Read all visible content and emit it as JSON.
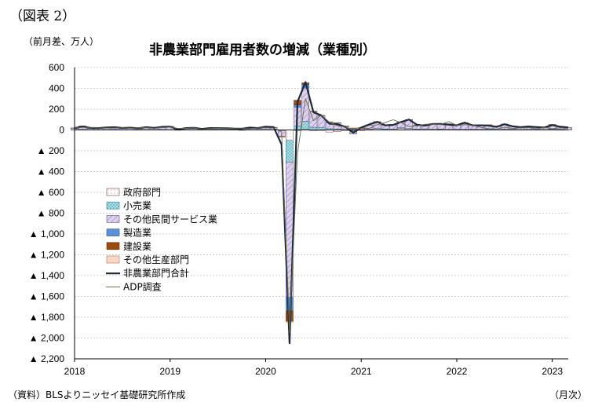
{
  "figure_label": "（図表 2）",
  "unit_label": "（前月差、万人）",
  "title": "非農業部門雇用者数の増減（業種別）",
  "source_note": "（資料）BLSよりニッセイ基礎研究所作成",
  "month_label": "（月次）",
  "colors": {
    "government": "#f3dede",
    "retail": "#a9dfe6",
    "other_services": "#d6c8ea",
    "manufacturing": "#5b8fd6",
    "construction": "#9c4a14",
    "other_goods": "#f9d9c6",
    "nfp_total": "#1b2a3a",
    "adp": "#6b6b4a",
    "grid": "#9a9a9a"
  },
  "chart_data": {
    "type": "bar",
    "title": "非農業部門雇用者数の増減（業種別）",
    "ylabel": "（前月差、万人）",
    "xlabel": "（月次）",
    "ylim": [
      -2200,
      600
    ],
    "y_ticks": [
      600,
      400,
      200,
      0,
      -200,
      -400,
      -600,
      -800,
      -1000,
      -1200,
      -1400,
      -1600,
      -1800,
      -2000,
      -2200
    ],
    "y_tick_labels": [
      "600",
      "400",
      "200",
      "0",
      "▲ 200",
      "▲ 400",
      "▲ 600",
      "▲ 800",
      "▲ 1,000",
      "▲ 1,200",
      "▲ 1,400",
      "▲ 1,600",
      "▲ 1,800",
      "▲ 2,000",
      "▲ 2,200"
    ],
    "x_tick_labels": [
      "2018",
      "2019",
      "2020",
      "2021",
      "2022",
      "2023"
    ],
    "x_start": "2018-01",
    "x_end": "2023-03",
    "legend_position": "left-middle",
    "legend": [
      "政府部門",
      "小売業",
      "その他民間サービス業",
      "製造業",
      "建設業",
      "その他生産部門",
      "非農業部門合計",
      "ADP調査"
    ],
    "months": [
      "2018-01",
      "2018-02",
      "2018-03",
      "2018-04",
      "2018-05",
      "2018-06",
      "2018-07",
      "2018-08",
      "2018-09",
      "2018-10",
      "2018-11",
      "2018-12",
      "2019-01",
      "2019-02",
      "2019-03",
      "2019-04",
      "2019-05",
      "2019-06",
      "2019-07",
      "2019-08",
      "2019-09",
      "2019-10",
      "2019-11",
      "2019-12",
      "2020-01",
      "2020-02",
      "2020-03",
      "2020-04",
      "2020-05",
      "2020-06",
      "2020-07",
      "2020-08",
      "2020-09",
      "2020-10",
      "2020-11",
      "2020-12",
      "2021-01",
      "2021-02",
      "2021-03",
      "2021-04",
      "2021-05",
      "2021-06",
      "2021-07",
      "2021-08",
      "2021-09",
      "2021-10",
      "2021-11",
      "2021-12",
      "2022-01",
      "2022-02",
      "2022-03",
      "2022-04",
      "2022-05",
      "2022-06",
      "2022-07",
      "2022-08",
      "2022-09",
      "2022-10",
      "2022-11",
      "2022-12",
      "2023-01",
      "2023-02",
      "2023-03"
    ],
    "series": [
      {
        "name": "政府部門",
        "kind": "bar",
        "values": [
          1,
          3,
          2,
          1,
          2,
          3,
          1,
          2,
          1,
          2,
          2,
          3,
          2,
          1,
          2,
          2,
          1,
          3,
          2,
          2,
          1,
          2,
          2,
          2,
          3,
          2,
          -2,
          -100,
          -5,
          8,
          -8,
          -5,
          -20,
          -15,
          -5,
          -10,
          3,
          2,
          10,
          5,
          5,
          15,
          10,
          5,
          8,
          3,
          5,
          3,
          2,
          3,
          3,
          4,
          3,
          2,
          4,
          3,
          2,
          3,
          4,
          2,
          6,
          4,
          3
        ]
      },
      {
        "name": "小売業",
        "kind": "bar",
        "values": [
          1,
          2,
          1,
          1,
          2,
          2,
          1,
          1,
          1,
          2,
          2,
          2,
          1,
          1,
          1,
          1,
          1,
          1,
          1,
          1,
          0,
          1,
          1,
          2,
          2,
          1,
          -5,
          -210,
          38,
          75,
          26,
          25,
          12,
          10,
          3,
          10,
          -1,
          4,
          6,
          5,
          3,
          7,
          4,
          3,
          3,
          4,
          4,
          3,
          5,
          3,
          4,
          2,
          6,
          2,
          3,
          4,
          2,
          3,
          3,
          2,
          3,
          2,
          1
        ]
      },
      {
        "name": "その他民間サービス業",
        "kind": "bar",
        "values": [
          14,
          25,
          12,
          12,
          14,
          16,
          12,
          14,
          10,
          16,
          13,
          17,
          25,
          2,
          12,
          13,
          6,
          12,
          11,
          12,
          10,
          12,
          14,
          12,
          21,
          19,
          -55,
          -1300,
          180,
          320,
          150,
          110,
          60,
          55,
          30,
          -30,
          20,
          40,
          58,
          34,
          40,
          52,
          82,
          36,
          30,
          48,
          43,
          48,
          38,
          56,
          36,
          33,
          35,
          31,
          44,
          28,
          20,
          25,
          19,
          18,
          40,
          25,
          19
        ]
      },
      {
        "name": "製造業",
        "kind": "bar",
        "values": [
          2,
          3,
          2,
          3,
          2,
          3,
          3,
          2,
          1,
          3,
          2,
          3,
          1,
          1,
          0,
          1,
          0,
          1,
          1,
          0,
          0,
          -4,
          5,
          0,
          1,
          1,
          -2,
          -130,
          23,
          35,
          3,
          3,
          6,
          4,
          3,
          3,
          -1,
          2,
          5,
          2,
          2,
          1,
          3,
          3,
          2,
          4,
          3,
          3,
          2,
          3,
          3,
          5,
          2,
          3,
          3,
          2,
          2,
          2,
          1,
          1,
          2,
          -0.4,
          0
        ]
      },
      {
        "name": "建設業",
        "kind": "bar",
        "values": [
          2,
          6,
          2,
          2,
          2,
          1,
          2,
          2,
          2,
          3,
          1,
          3,
          5,
          -3,
          2,
          3,
          1,
          2,
          1,
          1,
          1,
          1,
          1,
          2,
          3,
          2,
          -3,
          -100,
          45,
          16,
          2,
          1,
          0,
          1,
          3,
          5,
          -1,
          -1,
          2,
          0,
          2,
          -0.3,
          1,
          2,
          1,
          3,
          3,
          2,
          2,
          4,
          2,
          3,
          4,
          1,
          2,
          2,
          2,
          2,
          1,
          2,
          2,
          2,
          0
        ]
      },
      {
        "name": "その他生産部門",
        "kind": "bar",
        "values": [
          0.5,
          1,
          0.5,
          0.5,
          0.5,
          0.5,
          0.5,
          0.5,
          0.5,
          0.5,
          0.3,
          0.5,
          0.5,
          0.3,
          0.3,
          0.3,
          0.3,
          0.3,
          0.3,
          0.3,
          0.3,
          0.3,
          0.3,
          0.3,
          0.3,
          0.3,
          -0.5,
          -7,
          0.5,
          1,
          0.5,
          0.3,
          0.3,
          0.3,
          0.3,
          0.3,
          0.3,
          0.3,
          0.3,
          0.3,
          0.3,
          0.3,
          0.3,
          0.3,
          0.3,
          0.3,
          0.3,
          0.3,
          0.3,
          0.3,
          0.3,
          0.3,
          0.3,
          0.3,
          0.3,
          0.3,
          0.3,
          0.3,
          0.3,
          0.3,
          0.3,
          0.3,
          0.3
        ]
      },
      {
        "name": "非農業部門合計",
        "kind": "line",
        "values": [
          18,
          32,
          20,
          18,
          24,
          27,
          19,
          22,
          16,
          27,
          20,
          30,
          32,
          5,
          18,
          21,
          10,
          18,
          17,
          17,
          13,
          12,
          23,
          18,
          31,
          28,
          -140,
          -2050,
          270,
          460,
          170,
          140,
          60,
          55,
          30,
          -27,
          23,
          53,
          78,
          45,
          48,
          77,
          100,
          50,
          42,
          58,
          58,
          51,
          45,
          70,
          44,
          45,
          42,
          30,
          55,
          35,
          27,
          33,
          28,
          24,
          47,
          31,
          24
        ]
      },
      {
        "name": "ADP調査",
        "kind": "line",
        "values": [
          23,
          24,
          24,
          20,
          18,
          18,
          21,
          17,
          20,
          22,
          16,
          26,
          28,
          15,
          16,
          21,
          4,
          13,
          15,
          19,
          13,
          12,
          11,
          19,
          21,
          18,
          -20,
          -1950,
          -220,
          300,
          90,
          140,
          75,
          40,
          30,
          -12,
          15,
          15,
          50,
          70,
          98,
          70,
          33,
          37,
          55,
          56,
          53,
          81,
          45,
          51,
          46,
          25,
          13,
          9,
          26,
          15,
          19,
          22,
          12,
          24,
          12,
          20,
          15
        ]
      }
    ]
  }
}
